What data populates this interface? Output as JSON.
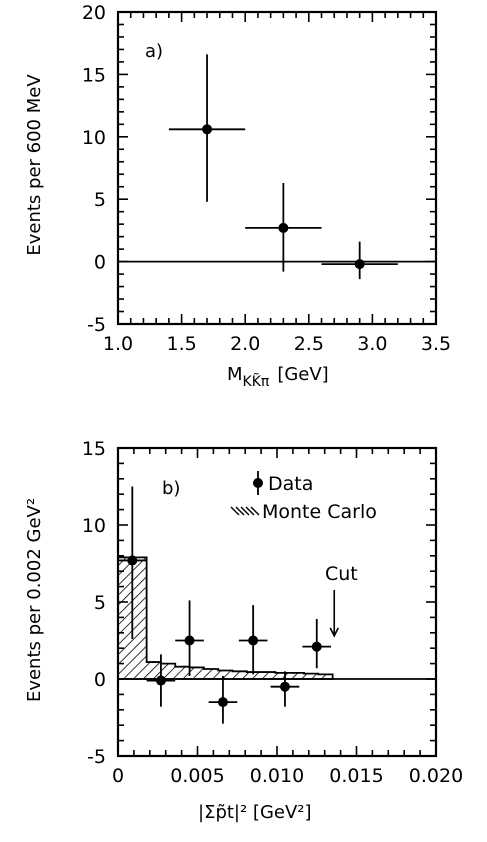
{
  "chart_data": [
    {
      "type": "scatter",
      "panel_label": "a)",
      "xlabel": "M",
      "xlabel_sub": "KK̃π",
      "xlabel_unit": "[GeV]",
      "ylabel": "Events per 600 MeV",
      "xlim": [
        1.0,
        3.5
      ],
      "ylim": [
        -5,
        20
      ],
      "xticks": [
        "1.0",
        "1.5",
        "2.0",
        "2.5",
        "3.0",
        "3.5"
      ],
      "yticks": [
        "-5",
        "0",
        "5",
        "10",
        "15",
        "20"
      ],
      "reference_line_y": 0,
      "points": [
        {
          "x": 1.7,
          "y": 10.6,
          "xerr_low": 1.4,
          "xerr_high": 2.0,
          "yerr_low": 4.8,
          "yerr_high": 16.6
        },
        {
          "x": 2.3,
          "y": 2.7,
          "xerr_low": 2.0,
          "xerr_high": 2.6,
          "yerr_low": -0.8,
          "yerr_high": 6.3
        },
        {
          "x": 2.9,
          "y": -0.2,
          "xerr_low": 2.6,
          "xerr_high": 3.2,
          "yerr_low": -1.4,
          "yerr_high": 1.6
        }
      ]
    },
    {
      "type": "scatter",
      "panel_label": "b)",
      "xlabel": "|Σp̃t|² [GeV²]",
      "ylabel": "Events per 0.002 GeV²",
      "xlim": [
        0,
        0.02
      ],
      "ylim": [
        -5,
        15
      ],
      "xticks": [
        "0",
        "0.005",
        "0.010",
        "0.015",
        "0.020"
      ],
      "yticks": [
        "-5",
        "0",
        "5",
        "10",
        "15"
      ],
      "reference_line_y": 0,
      "legend": {
        "data_label": "Data",
        "mc_label": "Monte Carlo",
        "placement": "top-right"
      },
      "annotation": {
        "text": "Cut",
        "x": 0.0136
      },
      "points": [
        {
          "x": 0.0009,
          "y": 7.7,
          "xerr_low": 0.0,
          "xerr_high": 0.0018,
          "yerr_low": 2.6,
          "yerr_high": 12.5
        },
        {
          "x": 0.0027,
          "y": -0.1,
          "xerr_low": 0.0018,
          "xerr_high": 0.0036,
          "yerr_low": -1.8,
          "yerr_high": 1.6
        },
        {
          "x": 0.0045,
          "y": 2.5,
          "xerr_low": 0.0036,
          "xerr_high": 0.0054,
          "yerr_low": 0.2,
          "yerr_high": 5.1
        },
        {
          "x": 0.0066,
          "y": -1.5,
          "xerr_low": 0.0057,
          "xerr_high": 0.0075,
          "yerr_low": -2.9,
          "yerr_high": 0.2
        },
        {
          "x": 0.0085,
          "y": 2.5,
          "xerr_low": 0.0076,
          "xerr_high": 0.0094,
          "yerr_low": 0.3,
          "yerr_high": 4.8
        },
        {
          "x": 0.0105,
          "y": -0.5,
          "xerr_low": 0.0096,
          "xerr_high": 0.0114,
          "yerr_low": -1.8,
          "yerr_high": 0.5
        },
        {
          "x": 0.0125,
          "y": 2.1,
          "xerr_low": 0.0116,
          "xerr_high": 0.0134,
          "yerr_low": 0.7,
          "yerr_high": 3.9
        }
      ],
      "monte_carlo_histogram": {
        "bin_edges": [
          0,
          0.0018,
          0.0027,
          0.0036,
          0.0045,
          0.0054,
          0.0063,
          0.0072,
          0.0081,
          0.009,
          0.0099,
          0.0108,
          0.0117,
          0.0126,
          0.0135
        ],
        "values": [
          7.9,
          1.1,
          1.0,
          0.8,
          0.75,
          0.65,
          0.55,
          0.5,
          0.45,
          0.45,
          0.4,
          0.4,
          0.35,
          0.3
        ]
      }
    }
  ]
}
